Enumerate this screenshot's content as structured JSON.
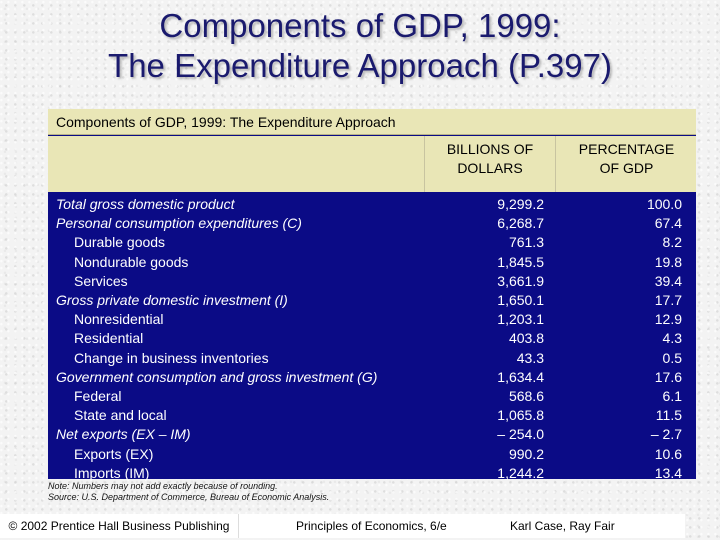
{
  "title": {
    "line1": "Components of GDP, 1999:",
    "line2": "The Expenditure Approach (P.397)"
  },
  "table": {
    "title": "Components of GDP, 1999:  The Expenditure Approach",
    "headers": {
      "col1_line1": "BILLIONS OF",
      "col1_line2": "DOLLARS",
      "col2_line1": "PERCENTAGE",
      "col2_line2": "OF GDP"
    },
    "rows": [
      {
        "label": "Total gross domestic product",
        "billions": "9,299.2",
        "percent": "100.0",
        "indent": false,
        "italic": true
      },
      {
        "label": "Personal consumption expenditures (C)",
        "billions": "6,268.7",
        "percent": "67.4",
        "indent": false,
        "italic": true
      },
      {
        "label": "Durable goods",
        "billions": "761.3",
        "percent": "8.2",
        "indent": true,
        "italic": false
      },
      {
        "label": "Nondurable goods",
        "billions": "1,845.5",
        "percent": "19.8",
        "indent": true,
        "italic": false
      },
      {
        "label": "Services",
        "billions": "3,661.9",
        "percent": "39.4",
        "indent": true,
        "italic": false
      },
      {
        "label": "Gross private domestic investment (I)",
        "billions": "1,650.1",
        "percent": "17.7",
        "indent": false,
        "italic": true
      },
      {
        "label": "Nonresidential",
        "billions": "1,203.1",
        "percent": "12.9",
        "indent": true,
        "italic": false
      },
      {
        "label": "Residential",
        "billions": "403.8",
        "percent": "4.3",
        "indent": true,
        "italic": false
      },
      {
        "label": "Change in business inventories",
        "billions": "43.3",
        "percent": "0.5",
        "indent": true,
        "italic": false
      },
      {
        "label": "Government consumption and gross investment (G)",
        "billions": "1,634.4",
        "percent": "17.6",
        "indent": false,
        "italic": true
      },
      {
        "label": "Federal",
        "billions": "568.6",
        "percent": "6.1",
        "indent": true,
        "italic": false
      },
      {
        "label": "State and local",
        "billions": "1,065.8",
        "percent": "11.5",
        "indent": true,
        "italic": false
      },
      {
        "label": "Net exports (EX – IM)",
        "billions": "– 254.0",
        "percent": "– 2.7",
        "indent": false,
        "italic": true
      },
      {
        "label": "Exports (EX)",
        "billions": "990.2",
        "percent": "10.6",
        "indent": true,
        "italic": false
      },
      {
        "label": "Imports (IM)",
        "billions": "1,244.2",
        "percent": "13.4",
        "indent": true,
        "italic": false
      }
    ]
  },
  "notes": {
    "note": "Note:  Numbers may not add exactly because of rounding.",
    "source": "Source:  U.S. Department of Commerce, Bureau of Economic Analysis."
  },
  "footer": {
    "copyright": "© 2002 Prentice Hall Business Publishing",
    "book": "Principles of Economics, 6/e",
    "authors": "Karl Case, Ray Fair"
  },
  "colors": {
    "title_text": "#1a1a6e",
    "table_body": "#0b0b86",
    "table_header": "#e9e6b6"
  }
}
